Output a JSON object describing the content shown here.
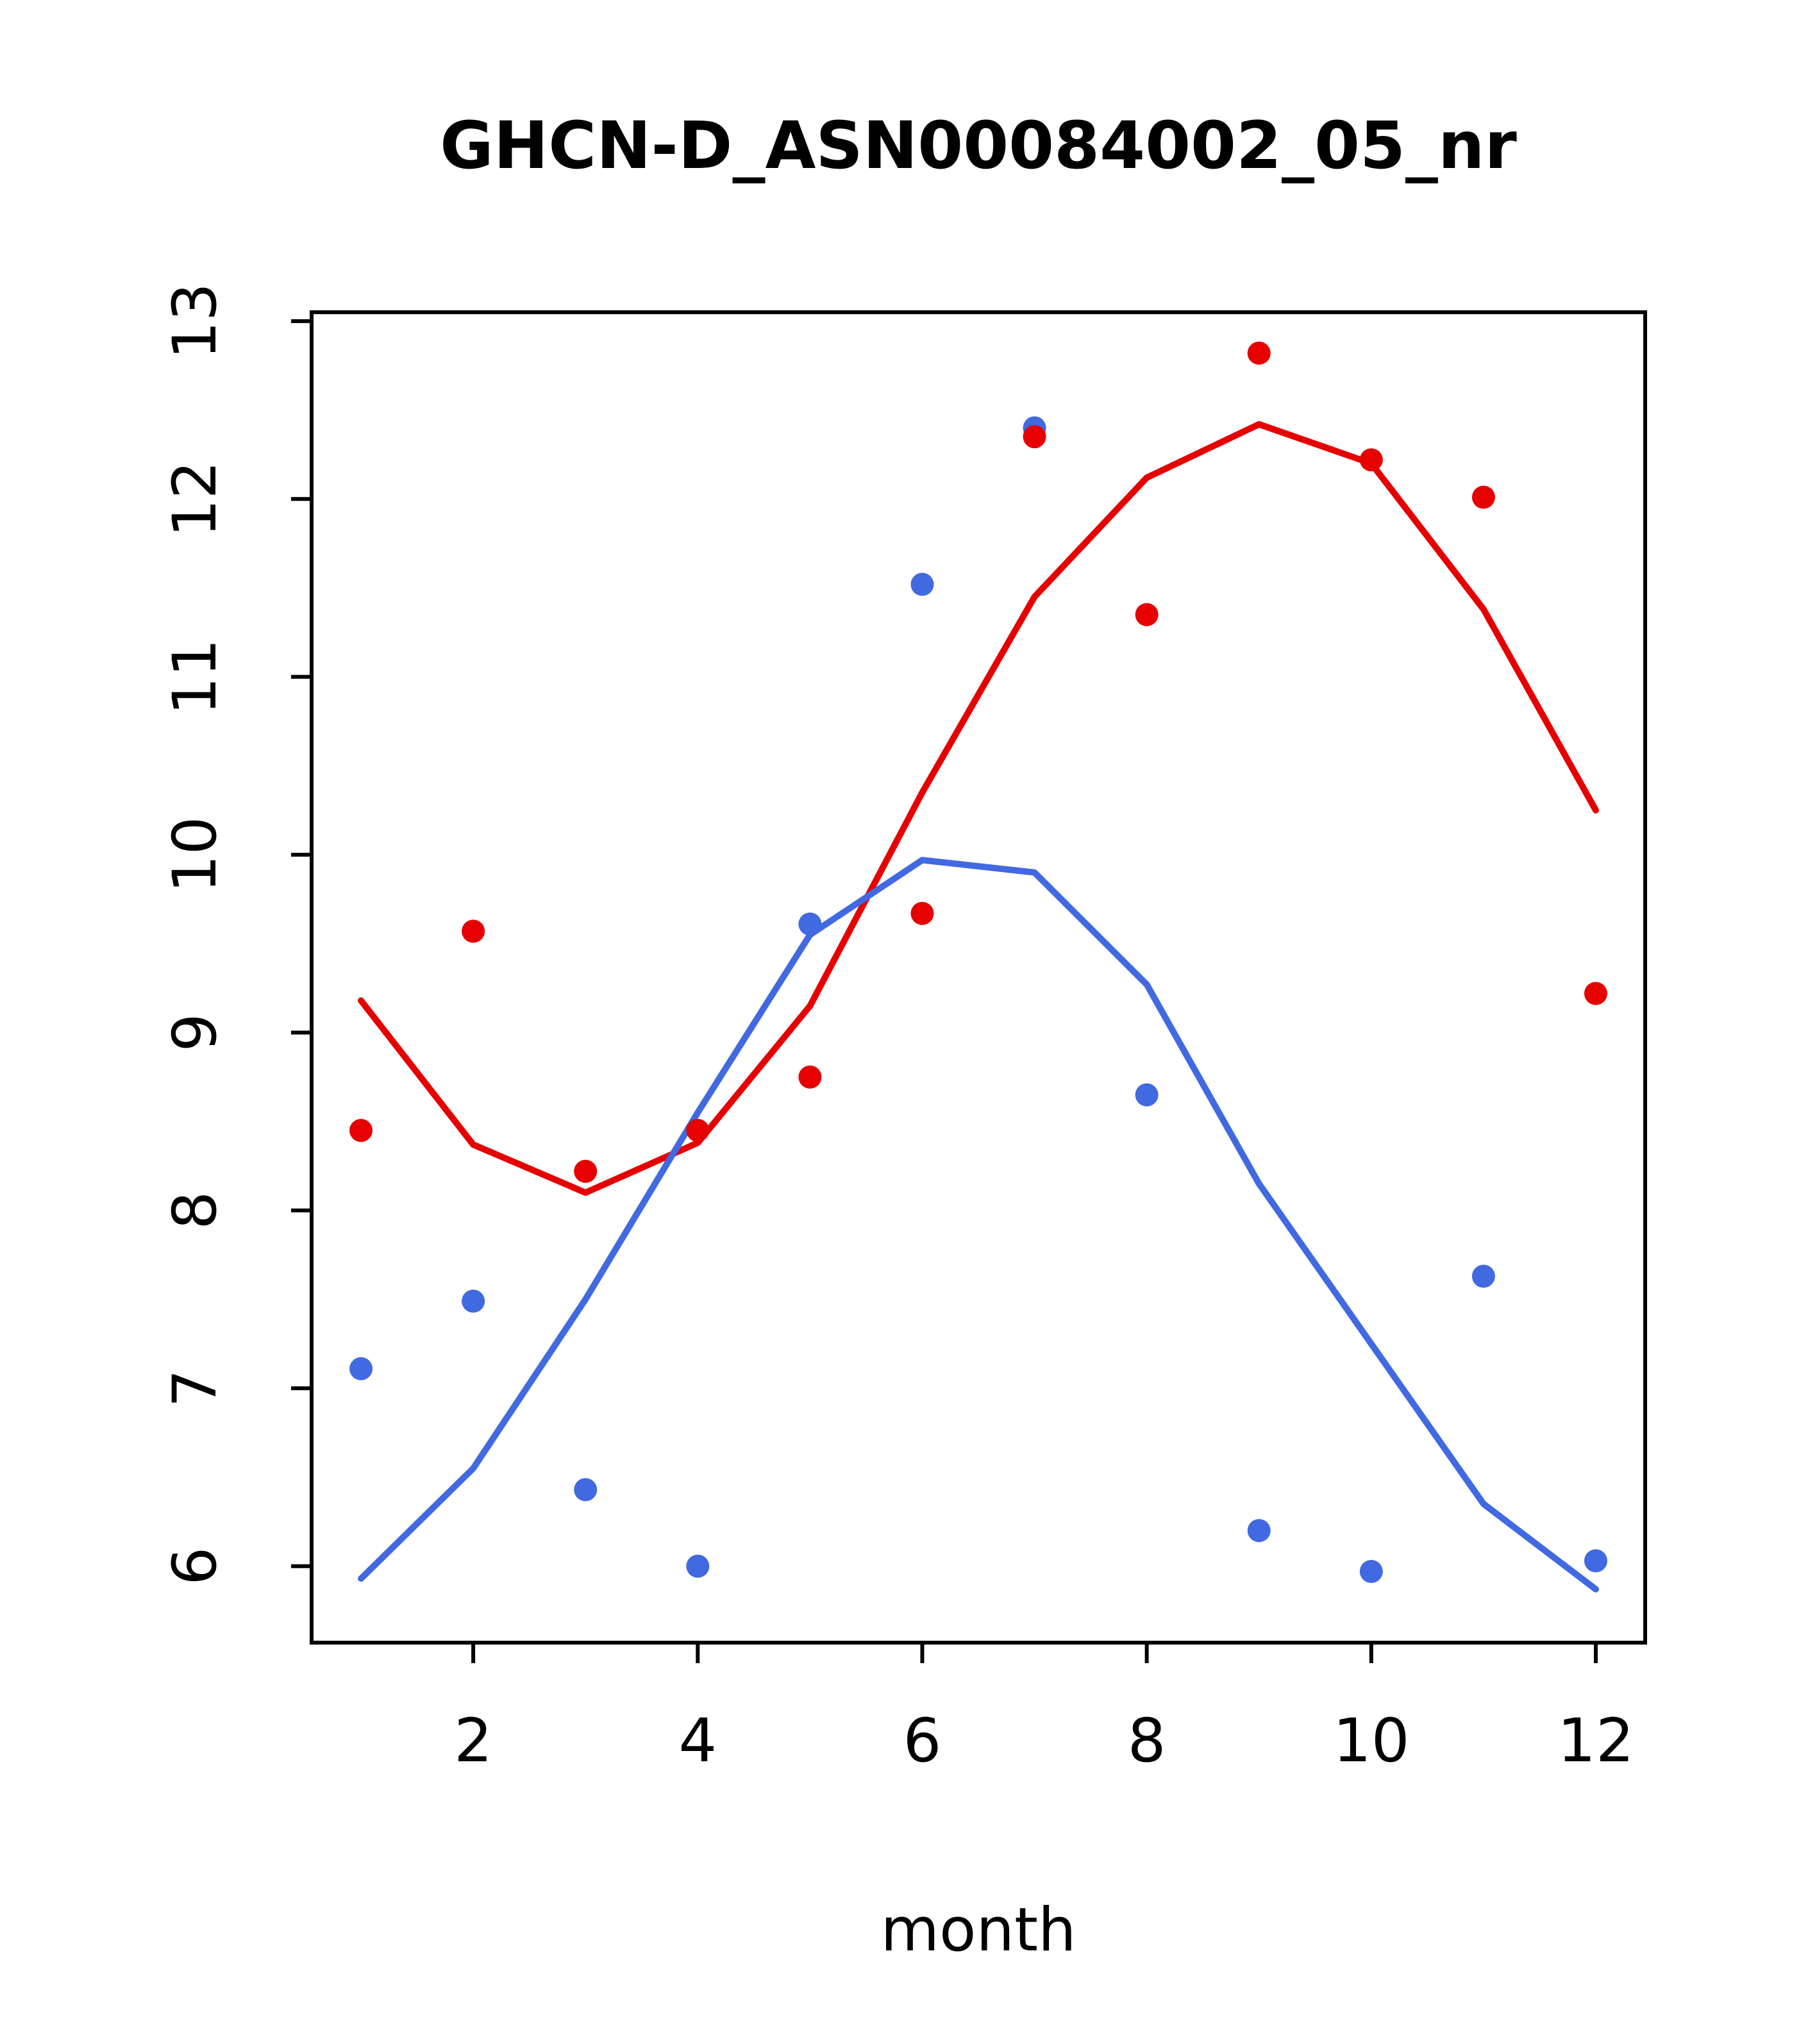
{
  "chart_data": {
    "type": "scatter",
    "title": "GHCN-D_ASN00084002_05_nr",
    "xlabel": "month",
    "ylabel": "",
    "xlim": [
      0.56,
      12.44
    ],
    "ylim": [
      5.57,
      13.05
    ],
    "xticks": [
      2,
      4,
      6,
      8,
      10,
      12
    ],
    "yticks": [
      6,
      7,
      8,
      9,
      10,
      11,
      12,
      13
    ],
    "grid": false,
    "legend_position": "none",
    "colors": {
      "red": "#e60000",
      "blue": "#4169e1"
    },
    "x_months": [
      1,
      2,
      3,
      4,
      5,
      6,
      7,
      8,
      9,
      10,
      11,
      12
    ],
    "series": [
      {
        "name": "red-line",
        "kind": "line",
        "color_key": "red",
        "values": [
          9.18,
          8.37,
          8.1,
          8.38,
          9.15,
          10.35,
          11.45,
          12.12,
          12.42,
          12.2,
          11.38,
          10.25
        ]
      },
      {
        "name": "blue-line",
        "kind": "line",
        "color_key": "blue",
        "values": [
          5.93,
          6.55,
          7.5,
          8.55,
          9.55,
          9.97,
          9.9,
          9.27,
          8.15,
          7.25,
          6.35,
          5.87
        ]
      },
      {
        "name": "blue-points",
        "kind": "points",
        "color_key": "blue",
        "values": [
          7.11,
          7.49,
          6.43,
          6.0,
          9.61,
          11.52,
          12.4,
          8.65,
          6.2,
          5.97,
          7.63,
          6.03
        ]
      },
      {
        "name": "red-points",
        "kind": "points",
        "color_key": "red",
        "values": [
          8.45,
          9.57,
          8.22,
          8.45,
          8.75,
          9.67,
          12.35,
          11.35,
          12.82,
          12.22,
          12.01,
          9.22
        ]
      }
    ],
    "layout": {
      "plot_left": 486,
      "plot_right": 2566,
      "plot_top": 487,
      "plot_bottom": 2562,
      "title_y": 262,
      "xlabel_y": 3042,
      "xtick_label_offset": 185,
      "ytick_label_offset": 150,
      "tick_length": 32,
      "box_stroke": 6,
      "tick_stroke": 6,
      "line_width": 10,
      "point_radius": 18
    }
  }
}
